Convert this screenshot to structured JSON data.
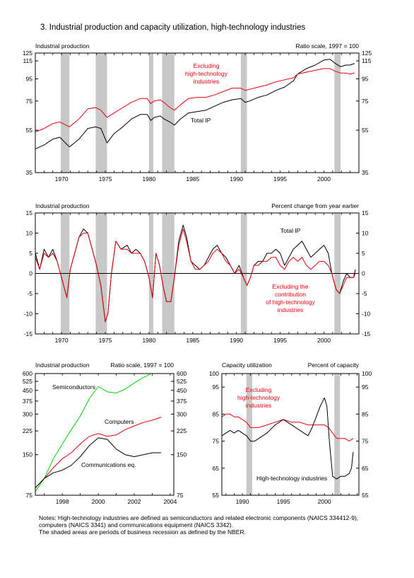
{
  "figure": {
    "title": "3.  Industrial production and capacity utilization, high-technology industries",
    "notes": [
      "Notes:  High-technology industries are defined as semiconductors and related electronic components (NAICS 334412-9),",
      "computers (NAICS 3341) and communications equipment (NAICS 3342).",
      "The shaded areas are periods of business recession as defined by the NBER."
    ]
  },
  "chart_data": [
    {
      "id": "ip-levels",
      "type": "line",
      "title": "Industrial production",
      "scale_note": "Ratio scale, 1997 = 100",
      "log_scale": true,
      "xlim": [
        1967,
        2004
      ],
      "ylim": [
        35,
        125
      ],
      "yticks": [
        35,
        55,
        75,
        95,
        115,
        125
      ],
      "xticks": [
        1970,
        1975,
        1980,
        1985,
        1990,
        1995,
        2000
      ],
      "recessions": [
        [
          1969.9,
          1970.9
        ],
        [
          1973.9,
          1975.2
        ],
        [
          1980.0,
          1980.5
        ],
        [
          1981.5,
          1982.9
        ],
        [
          1990.5,
          1991.2
        ],
        [
          2001.2,
          2001.9
        ]
      ],
      "series": [
        {
          "name": "Total IP",
          "color": "#000000",
          "x": [
            1967.0,
            1968.0,
            1969.0,
            1969.8,
            1970.9,
            1972.0,
            1973.0,
            1973.9,
            1974.5,
            1975.2,
            1976.0,
            1977.0,
            1978.0,
            1979.0,
            1979.8,
            1980.2,
            1980.6,
            1981.3,
            1981.7,
            1982.4,
            1982.9,
            1983.6,
            1984.5,
            1985.5,
            1986.5,
            1987.5,
            1988.5,
            1989.5,
            1990.5,
            1991.0,
            1991.5,
            1992.5,
            1993.5,
            1994.5,
            1995.5,
            1996.5,
            1997.0,
            1998.0,
            1999.0,
            2000.0,
            2000.7,
            2001.3,
            2001.9,
            2002.5,
            2003.0,
            2003.5
          ],
          "y": [
            45,
            47,
            50,
            51,
            46,
            50,
            56,
            57,
            56,
            48,
            53,
            57,
            62,
            65,
            65,
            61,
            63,
            64,
            62,
            60,
            58,
            62,
            66,
            67,
            68,
            71,
            74,
            76,
            77,
            74,
            75,
            78,
            80,
            84,
            87,
            93,
            100,
            106,
            110,
            116,
            117,
            112,
            108,
            110,
            110,
            112
          ]
        },
        {
          "name": "Excluding high-technology industries",
          "color": "#e8000b",
          "x": [
            1967.0,
            1968.0,
            1969.0,
            1969.8,
            1970.9,
            1972.0,
            1973.0,
            1973.9,
            1974.5,
            1975.2,
            1976.0,
            1977.0,
            1978.0,
            1979.0,
            1979.8,
            1980.2,
            1980.6,
            1981.3,
            1981.7,
            1982.4,
            1982.9,
            1983.6,
            1984.5,
            1985.5,
            1986.5,
            1987.5,
            1988.5,
            1989.5,
            1990.5,
            1991.0,
            1991.5,
            1992.5,
            1993.5,
            1994.5,
            1995.5,
            1996.5,
            1997.0,
            1998.0,
            1999.0,
            2000.0,
            2000.7,
            2001.3,
            2001.9,
            2002.5,
            2003.0,
            2003.5
          ],
          "y": [
            54,
            56,
            59,
            60,
            57,
            62,
            69,
            70,
            68,
            63,
            66,
            70,
            74,
            77,
            77,
            73,
            75,
            76,
            74,
            70,
            68,
            72,
            77,
            78,
            78,
            80,
            83,
            86,
            86,
            84,
            85,
            87,
            89,
            92,
            94,
            96,
            100,
            102,
            104,
            106,
            106,
            103,
            101,
            101,
            100,
            101
          ]
        }
      ]
    },
    {
      "id": "ip-change",
      "type": "line",
      "title": "Industrial production",
      "scale_note": "Percent change from year earlier",
      "xlim": [
        1967,
        2004
      ],
      "ylim": [
        -15,
        15
      ],
      "yticks": [
        -15,
        -10,
        -5,
        0,
        5,
        10,
        15
      ],
      "xticks": [
        1970,
        1975,
        1980,
        1985,
        1990,
        1995,
        2000
      ],
      "recessions": [
        [
          1969.9,
          1970.9
        ],
        [
          1973.9,
          1975.2
        ],
        [
          1980.0,
          1980.5
        ],
        [
          1981.5,
          1982.9
        ],
        [
          1990.5,
          1991.2
        ],
        [
          2001.2,
          2001.9
        ]
      ],
      "series": [
        {
          "name": "Total IP",
          "color": "#000000",
          "x": [
            1967.0,
            1967.5,
            1968.0,
            1968.5,
            1969.0,
            1969.5,
            1970.0,
            1970.6,
            1971.0,
            1971.5,
            1972.0,
            1972.5,
            1973.0,
            1973.5,
            1974.0,
            1974.5,
            1975.0,
            1975.3,
            1975.7,
            1976.2,
            1976.8,
            1977.5,
            1978.0,
            1978.5,
            1979.0,
            1979.5,
            1980.0,
            1980.4,
            1980.8,
            1981.2,
            1981.6,
            1982.0,
            1982.5,
            1982.9,
            1983.4,
            1983.9,
            1984.3,
            1984.8,
            1985.3,
            1985.8,
            1986.3,
            1986.8,
            1987.3,
            1987.8,
            1988.3,
            1988.8,
            1989.3,
            1989.8,
            1990.3,
            1990.8,
            1991.2,
            1991.6,
            1992.0,
            1992.5,
            1993.0,
            1993.5,
            1994.0,
            1994.5,
            1995.0,
            1995.5,
            1996.0,
            1996.5,
            1997.0,
            1997.5,
            1998.0,
            1998.5,
            1999.0,
            1999.5,
            2000.0,
            2000.5,
            2000.9,
            2001.4,
            2001.8,
            2002.2,
            2002.6,
            2003.0,
            2003.4,
            2003.6
          ],
          "y": [
            5,
            1,
            6,
            4,
            6,
            3,
            -1,
            -6,
            1,
            5,
            9,
            11,
            10,
            6,
            2,
            -3,
            -12,
            -10,
            0,
            8,
            6,
            7,
            5,
            6,
            5,
            3,
            -1,
            -6,
            5,
            2,
            -3,
            -7,
            -7,
            -1,
            8,
            12,
            9,
            3,
            2,
            1,
            2,
            4,
            6,
            7,
            5,
            4,
            2,
            0,
            2,
            -1,
            -3,
            -1,
            2,
            3,
            3,
            5,
            5,
            6,
            5,
            2,
            4,
            6,
            7,
            8,
            6,
            4,
            5,
            6,
            7,
            5,
            0,
            -4,
            -5,
            -2,
            0,
            -1,
            -1,
            1
          ]
        },
        {
          "name": "Excluding the contribution of high-technology industries",
          "color": "#e8000b",
          "x": [
            1967.0,
            1967.5,
            1968.0,
            1968.5,
            1969.0,
            1969.5,
            1970.0,
            1970.6,
            1971.0,
            1971.5,
            1972.0,
            1972.5,
            1973.0,
            1973.5,
            1974.0,
            1974.5,
            1975.0,
            1975.3,
            1975.7,
            1976.2,
            1976.8,
            1977.5,
            1978.0,
            1978.5,
            1979.0,
            1979.5,
            1980.0,
            1980.4,
            1980.8,
            1981.2,
            1981.6,
            1982.0,
            1982.5,
            1982.9,
            1983.4,
            1983.9,
            1984.3,
            1984.8,
            1985.3,
            1985.8,
            1986.3,
            1986.8,
            1987.3,
            1987.8,
            1988.3,
            1988.8,
            1989.3,
            1989.8,
            1990.3,
            1990.8,
            1991.2,
            1991.6,
            1992.0,
            1992.5,
            1993.0,
            1993.5,
            1994.0,
            1994.5,
            1995.0,
            1995.5,
            1996.0,
            1996.5,
            1997.0,
            1997.5,
            1998.0,
            1998.5,
            1999.0,
            1999.5,
            2000.0,
            2000.5,
            2000.9,
            2001.4,
            2001.8,
            2002.2,
            2002.6,
            2003.0,
            2003.4,
            2003.6
          ],
          "y": [
            4,
            1,
            5,
            4,
            5,
            3,
            -1,
            -6,
            1,
            5,
            9,
            10,
            10,
            6,
            2,
            -3,
            -12,
            -10,
            0,
            8,
            6,
            6,
            5,
            5,
            5,
            3,
            -1,
            -6,
            5,
            2,
            -3,
            -7,
            -7,
            -1,
            7,
            11,
            8,
            3,
            1,
            1,
            2,
            3,
            5,
            6,
            5,
            3,
            2,
            0,
            1,
            -1,
            -3,
            -1,
            2,
            2,
            3,
            3,
            4,
            4,
            2,
            1,
            3,
            4,
            3,
            4,
            2,
            1,
            2,
            3,
            3,
            2,
            0,
            -4,
            -5,
            -3,
            -1,
            -1,
            -1,
            0
          ]
        }
      ]
    },
    {
      "id": "ip-hightech",
      "type": "line",
      "title": "Industrial production",
      "scale_note": "Ratio scale, 1997 = 100",
      "log_scale": true,
      "xlim": [
        1996.5,
        2004.2
      ],
      "ylim": [
        75,
        600
      ],
      "yticks": [
        75,
        150,
        225,
        300,
        375,
        450,
        525,
        600
      ],
      "xticks": [
        1998,
        2000,
        2002,
        2004
      ],
      "series": [
        {
          "name": "Semiconductors",
          "color": "#00d400",
          "x": [
            1996.5,
            1997.0,
            1997.5,
            1998.0,
            1998.5,
            1999.0,
            1999.5,
            2000.0,
            2000.5,
            2001.0,
            2001.5,
            2002.0,
            2002.5,
            2002.9
          ],
          "y": [
            80,
            100,
            140,
            180,
            230,
            290,
            390,
            480,
            440,
            430,
            460,
            510,
            560,
            595
          ]
        },
        {
          "name": "Computers",
          "color": "#e8000b",
          "x": [
            1996.5,
            1997.0,
            1997.5,
            1998.0,
            1998.5,
            1999.0,
            1999.5,
            2000.0,
            2000.5,
            2001.0,
            2001.5,
            2002.0,
            2002.5,
            2003.0,
            2003.5
          ],
          "y": [
            85,
            100,
            120,
            140,
            155,
            180,
            205,
            215,
            205,
            210,
            230,
            245,
            260,
            270,
            285
          ]
        },
        {
          "name": "Communications eq.",
          "color": "#000000",
          "x": [
            1996.5,
            1997.0,
            1997.5,
            1998.0,
            1998.5,
            1999.0,
            1999.5,
            2000.0,
            2000.5,
            2001.0,
            2001.5,
            2002.0,
            2002.5,
            2003.0,
            2003.5
          ],
          "y": [
            85,
            100,
            110,
            115,
            125,
            145,
            175,
            200,
            195,
            165,
            150,
            145,
            150,
            155,
            155
          ]
        }
      ]
    },
    {
      "id": "capacity-utilization",
      "type": "line",
      "title": "Capacity utilization",
      "scale_note": "Percent of capacity",
      "xlim": [
        1987.5,
        2004.2
      ],
      "ylim": [
        55,
        100
      ],
      "yticks": [
        55,
        65,
        75,
        85,
        95,
        100
      ],
      "xticks": [
        1990,
        1995,
        2000
      ],
      "recessions": [
        [
          1990.5,
          1991.2
        ],
        [
          2001.2,
          2001.9
        ]
      ],
      "series": [
        {
          "name": "Excluding high-technology industries",
          "color": "#e8000b",
          "x": [
            1987.5,
            1988.0,
            1988.5,
            1989.0,
            1989.5,
            1990.0,
            1990.5,
            1991.0,
            1991.5,
            1992.0,
            1993.0,
            1994.0,
            1995.0,
            1996.0,
            1997.0,
            1998.0,
            1999.0,
            2000.0,
            2000.5,
            2001.0,
            2001.5,
            2002.0,
            2002.5,
            2003.0,
            2003.5
          ],
          "y": [
            84,
            85,
            85,
            84,
            84,
            83,
            82,
            80,
            80,
            80,
            81,
            82,
            83,
            82,
            82,
            81,
            81,
            81,
            80,
            78,
            76,
            76,
            76,
            75,
            76
          ]
        },
        {
          "name": "High-technology industries",
          "color": "#000000",
          "x": [
            1987.5,
            1988.0,
            1988.5,
            1989.0,
            1989.5,
            1990.0,
            1990.5,
            1991.0,
            1991.5,
            1992.0,
            1993.0,
            1994.0,
            1995.0,
            1996.0,
            1997.0,
            1998.0,
            1998.5,
            1999.0,
            1999.5,
            2000.0,
            2000.3,
            2000.6,
            2001.0,
            2001.5,
            2002.0,
            2002.5,
            2003.0,
            2003.3,
            2003.5
          ],
          "y": [
            77,
            78,
            79,
            78,
            79,
            78,
            77,
            75,
            75,
            76,
            78,
            81,
            83,
            81,
            79,
            77,
            80,
            84,
            88,
            91,
            88,
            75,
            62,
            61,
            62,
            62,
            63,
            65,
            71
          ]
        }
      ]
    }
  ]
}
